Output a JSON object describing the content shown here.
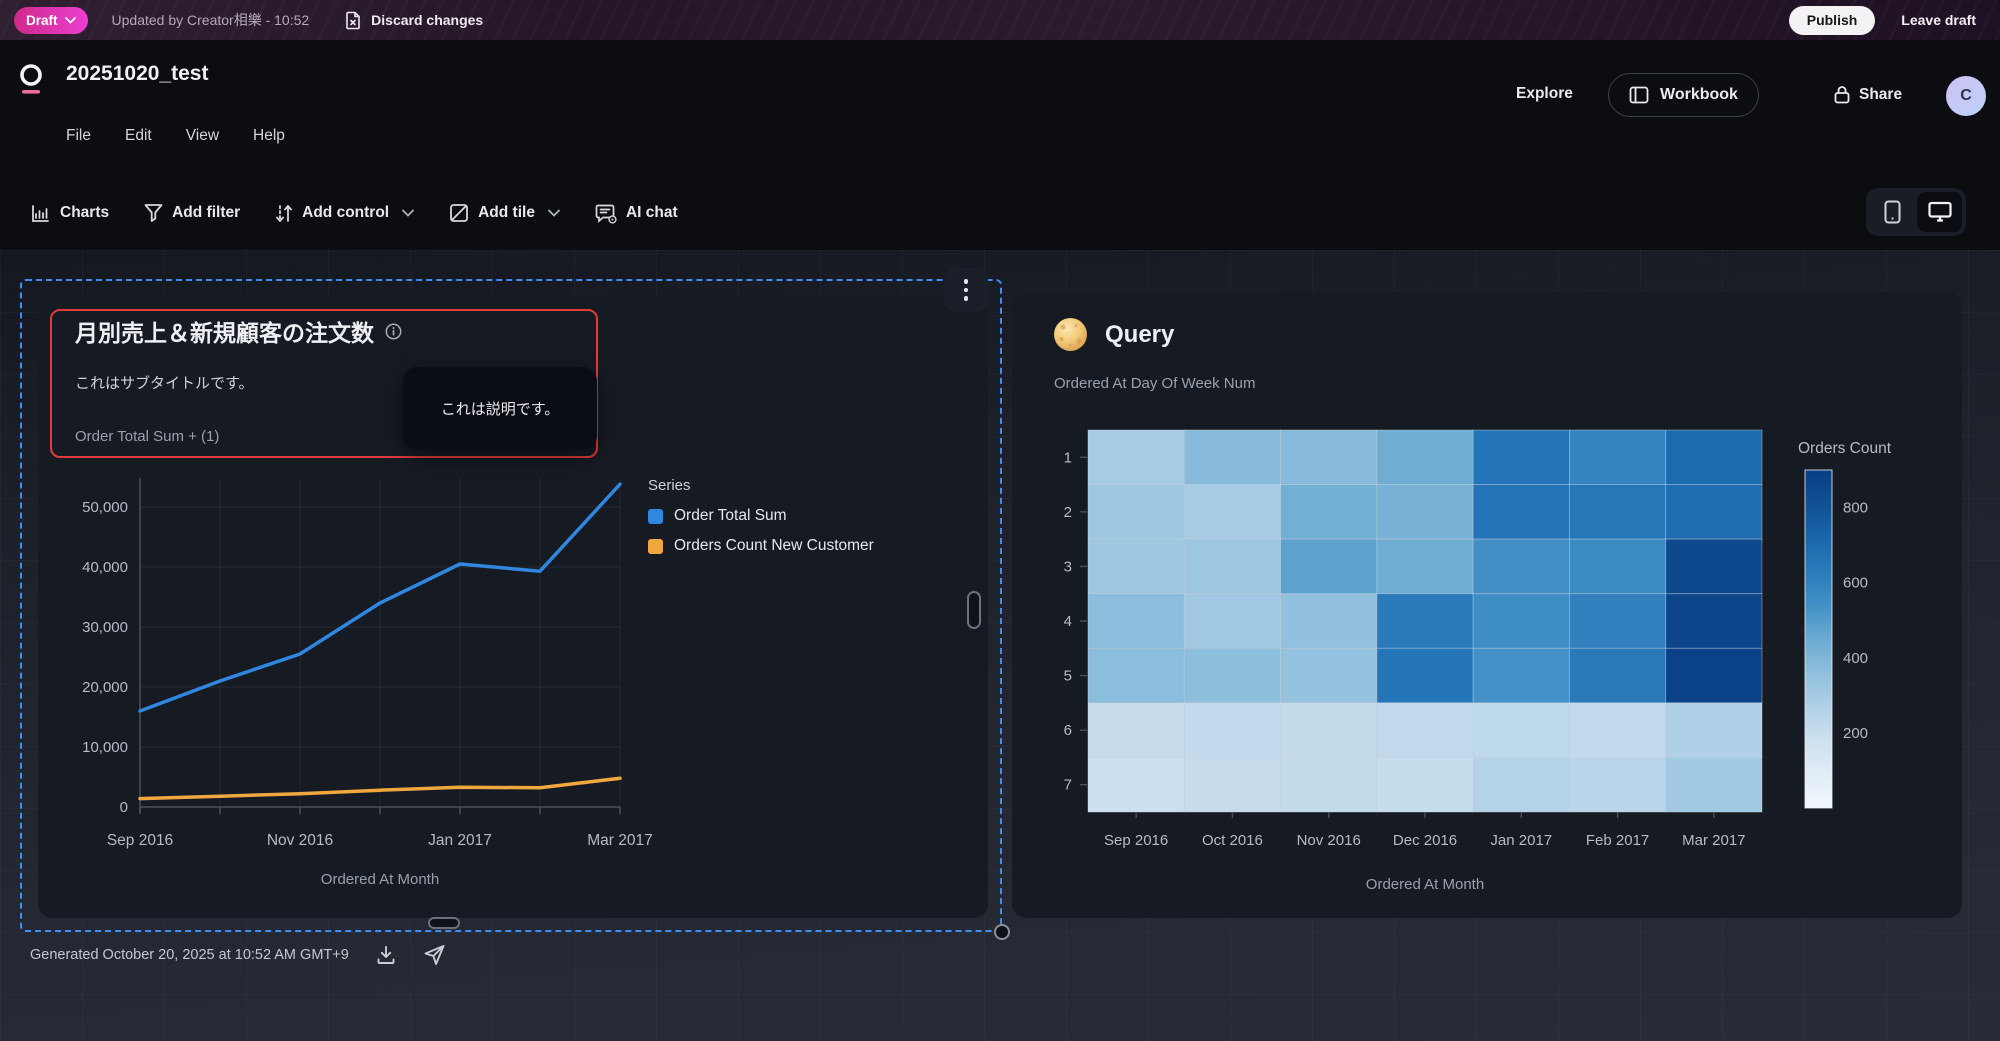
{
  "topbar": {
    "draft_label": "Draft",
    "updated_text": "Updated by Creator相樂 - 10:52",
    "discard_label": "Discard changes",
    "publish_label": "Publish",
    "leave_label": "Leave draft"
  },
  "header": {
    "title": "20251020_test",
    "menu": [
      "File",
      "Edit",
      "View",
      "Help"
    ],
    "explore_label": "Explore",
    "workbook_label": "Workbook",
    "share_label": "Share",
    "avatar_initial": "C"
  },
  "toolbar": {
    "charts": "Charts",
    "add_filter": "Add filter",
    "add_control": "Add control",
    "add_tile": "Add tile",
    "ai_chat": "AI chat"
  },
  "left_tile": {
    "tooltip_text": "これは説明です。",
    "field_label": "Order Total Sum + (1)",
    "legend_title": "Series"
  },
  "chart_data": [
    {
      "type": "line",
      "title": "月別売上＆新規顧客の注文数",
      "subtitle": "これはサブタイトルです。",
      "x": [
        "Sep 2016",
        "Oct 2016",
        "Nov 2016",
        "Dec 2016",
        "Jan 2017",
        "Feb 2017",
        "Mar 2017"
      ],
      "x_tick_indices": [
        0,
        2,
        4,
        6
      ],
      "series": [
        {
          "name": "Order Total Sum",
          "color": "#2f87e0",
          "values": [
            16000,
            21000,
            25500,
            34000,
            40500,
            39300,
            53800
          ]
        },
        {
          "name": "Orders Count New Customer",
          "color": "#f0a73e",
          "values": [
            1400,
            1800,
            2200,
            2800,
            3300,
            3200,
            4800
          ]
        }
      ],
      "xlabel": "Ordered At Month",
      "ylim": [
        0,
        55000
      ],
      "yticks": [
        0,
        10000,
        20000,
        30000,
        40000,
        50000
      ],
      "legend_title": "Series",
      "legend_position": "right",
      "grid": true
    },
    {
      "type": "heatmap",
      "title": "Query",
      "subtitle": "Ordered At Day Of Week Num",
      "rows": [
        "1",
        "2",
        "3",
        "4",
        "5",
        "6",
        "7"
      ],
      "columns": [
        "Sep 2016",
        "Oct 2016",
        "Nov 2016",
        "Dec 2016",
        "Jan 2017",
        "Feb 2017",
        "Mar 2017"
      ],
      "values": [
        [
          300,
          380,
          380,
          440,
          655,
          590,
          700
        ],
        [
          320,
          300,
          435,
          425,
          660,
          650,
          690
        ],
        [
          320,
          325,
          480,
          440,
          545,
          560,
          845
        ],
        [
          370,
          315,
          355,
          635,
          555,
          605,
          860
        ],
        [
          372,
          368,
          345,
          655,
          535,
          640,
          880
        ],
        [
          205,
          215,
          210,
          220,
          230,
          218,
          270
        ],
        [
          190,
          205,
          210,
          203,
          255,
          245,
          310
        ]
      ],
      "xlabel": "Ordered At Month",
      "colorbar": {
        "label": "Orders Count",
        "ticks": [
          800,
          600,
          400,
          200
        ],
        "domain": [
          0,
          900
        ]
      }
    }
  ],
  "canvas_footer": {
    "generated_text": "Generated October 20, 2025 at 10:52 AM GMT+9"
  },
  "colors": {
    "selection_blue": "#3e8ef5",
    "annotation_red": "#e23b3b",
    "series_blue": "#2f87e0",
    "series_orange": "#f0a73e",
    "draft_gradient_from": "#cf2a8b",
    "draft_gradient_to": "#ec3ed2"
  }
}
